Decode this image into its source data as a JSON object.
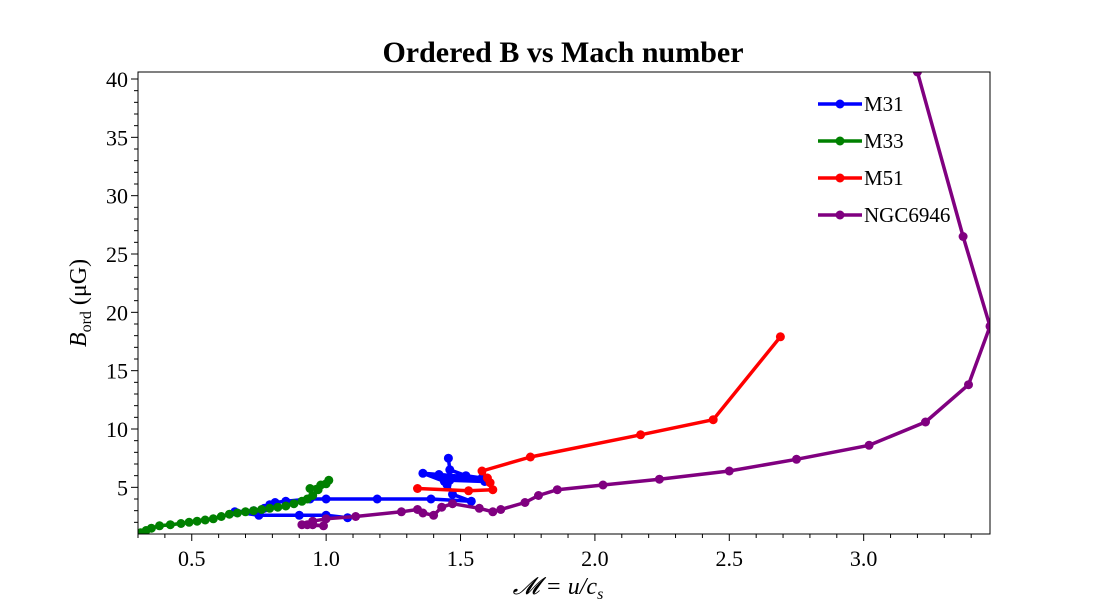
{
  "chart_data": {
    "type": "line",
    "title": "Ordered B vs Mach number",
    "xlabel": "𝓜 = u/c",
    "xlabel_sub": "s",
    "ylabel": "B",
    "ylabel_sub": "ord",
    "ylabel_unit": " (μG)",
    "xlim": [
      0.3,
      3.47
    ],
    "ylim": [
      1.0,
      40.6
    ],
    "x_ticks": [
      0.5,
      1.0,
      1.5,
      2.0,
      2.5,
      3.0
    ],
    "x_tick_labels": [
      "0.5",
      "1.0",
      "1.5",
      "2.0",
      "2.5",
      "3.0"
    ],
    "y_ticks": [
      5,
      10,
      15,
      20,
      25,
      30,
      35,
      40
    ],
    "y_tick_labels": [
      "5",
      "10",
      "15",
      "20",
      "25",
      "30",
      "35",
      "40"
    ],
    "grid": false,
    "legend_position": "top-right",
    "series": [
      {
        "name": "M31",
        "color": "#0000ff",
        "points": [
          [
            1.455,
            7.5
          ],
          [
            1.46,
            6.5
          ],
          [
            1.52,
            6.0
          ],
          [
            1.58,
            5.8
          ],
          [
            1.42,
            6.1
          ],
          [
            1.36,
            6.2
          ],
          [
            1.44,
            5.5
          ],
          [
            1.45,
            5.2
          ],
          [
            1.46,
            5.6
          ],
          [
            1.59,
            5.5
          ],
          [
            1.44,
            5.8
          ],
          [
            1.47,
            4.4
          ],
          [
            1.54,
            3.8
          ],
          [
            1.39,
            4.0
          ],
          [
            1.19,
            4.0
          ],
          [
            1.0,
            4.0
          ],
          [
            0.94,
            4.0
          ],
          [
            0.85,
            3.8
          ],
          [
            0.81,
            3.7
          ],
          [
            0.79,
            3.5
          ],
          [
            0.77,
            3.2
          ],
          [
            0.73,
            3.0
          ],
          [
            0.66,
            2.9
          ],
          [
            0.75,
            2.6
          ],
          [
            0.9,
            2.6
          ],
          [
            1.0,
            2.6
          ],
          [
            1.08,
            2.4
          ]
        ]
      },
      {
        "name": "M33",
        "color": "#008000",
        "points": [
          [
            0.31,
            1.1
          ],
          [
            0.33,
            1.3
          ],
          [
            0.35,
            1.5
          ],
          [
            0.38,
            1.7
          ],
          [
            0.42,
            1.8
          ],
          [
            0.46,
            1.9
          ],
          [
            0.49,
            2.0
          ],
          [
            0.52,
            2.1
          ],
          [
            0.55,
            2.2
          ],
          [
            0.58,
            2.3
          ],
          [
            0.61,
            2.5
          ],
          [
            0.64,
            2.7
          ],
          [
            0.67,
            2.8
          ],
          [
            0.7,
            2.9
          ],
          [
            0.73,
            3.0
          ],
          [
            0.76,
            3.1
          ],
          [
            0.79,
            3.2
          ],
          [
            0.82,
            3.3
          ],
          [
            0.85,
            3.4
          ],
          [
            0.88,
            3.6
          ],
          [
            0.91,
            3.8
          ],
          [
            0.93,
            4.0
          ],
          [
            0.95,
            4.3
          ],
          [
            0.97,
            4.8
          ],
          [
            0.94,
            4.9
          ],
          [
            0.98,
            5.2
          ],
          [
            1.0,
            5.3
          ],
          [
            1.01,
            5.6
          ]
        ]
      },
      {
        "name": "M51",
        "color": "#ff0000",
        "points": [
          [
            2.69,
            17.9
          ],
          [
            2.44,
            10.8
          ],
          [
            2.17,
            9.5
          ],
          [
            1.76,
            7.6
          ],
          [
            1.58,
            6.4
          ],
          [
            1.6,
            5.8
          ],
          [
            1.61,
            5.4
          ],
          [
            1.62,
            4.8
          ],
          [
            1.53,
            4.7
          ],
          [
            1.34,
            4.9
          ]
        ]
      },
      {
        "name": "NGC6946",
        "color": "#800080",
        "points": [
          [
            3.2,
            40.6
          ],
          [
            3.37,
            26.5
          ],
          [
            3.47,
            18.8
          ],
          [
            3.39,
            13.8
          ],
          [
            3.23,
            10.6
          ],
          [
            3.02,
            8.6
          ],
          [
            2.75,
            7.4
          ],
          [
            2.5,
            6.4
          ],
          [
            2.24,
            5.7
          ],
          [
            2.03,
            5.2
          ],
          [
            1.86,
            4.8
          ],
          [
            1.79,
            4.3
          ],
          [
            1.74,
            3.7
          ],
          [
            1.65,
            3.1
          ],
          [
            1.62,
            2.9
          ],
          [
            1.57,
            3.2
          ],
          [
            1.47,
            3.6
          ],
          [
            1.43,
            3.3
          ],
          [
            1.4,
            2.6
          ],
          [
            1.36,
            2.8
          ],
          [
            1.34,
            3.1
          ],
          [
            1.28,
            2.9
          ],
          [
            1.11,
            2.5
          ],
          [
            1.0,
            2.3
          ],
          [
            0.95,
            2.1
          ],
          [
            0.93,
            1.8
          ],
          [
            0.95,
            1.8
          ],
          [
            0.99,
            1.7
          ],
          [
            0.91,
            1.8
          ]
        ]
      }
    ]
  }
}
